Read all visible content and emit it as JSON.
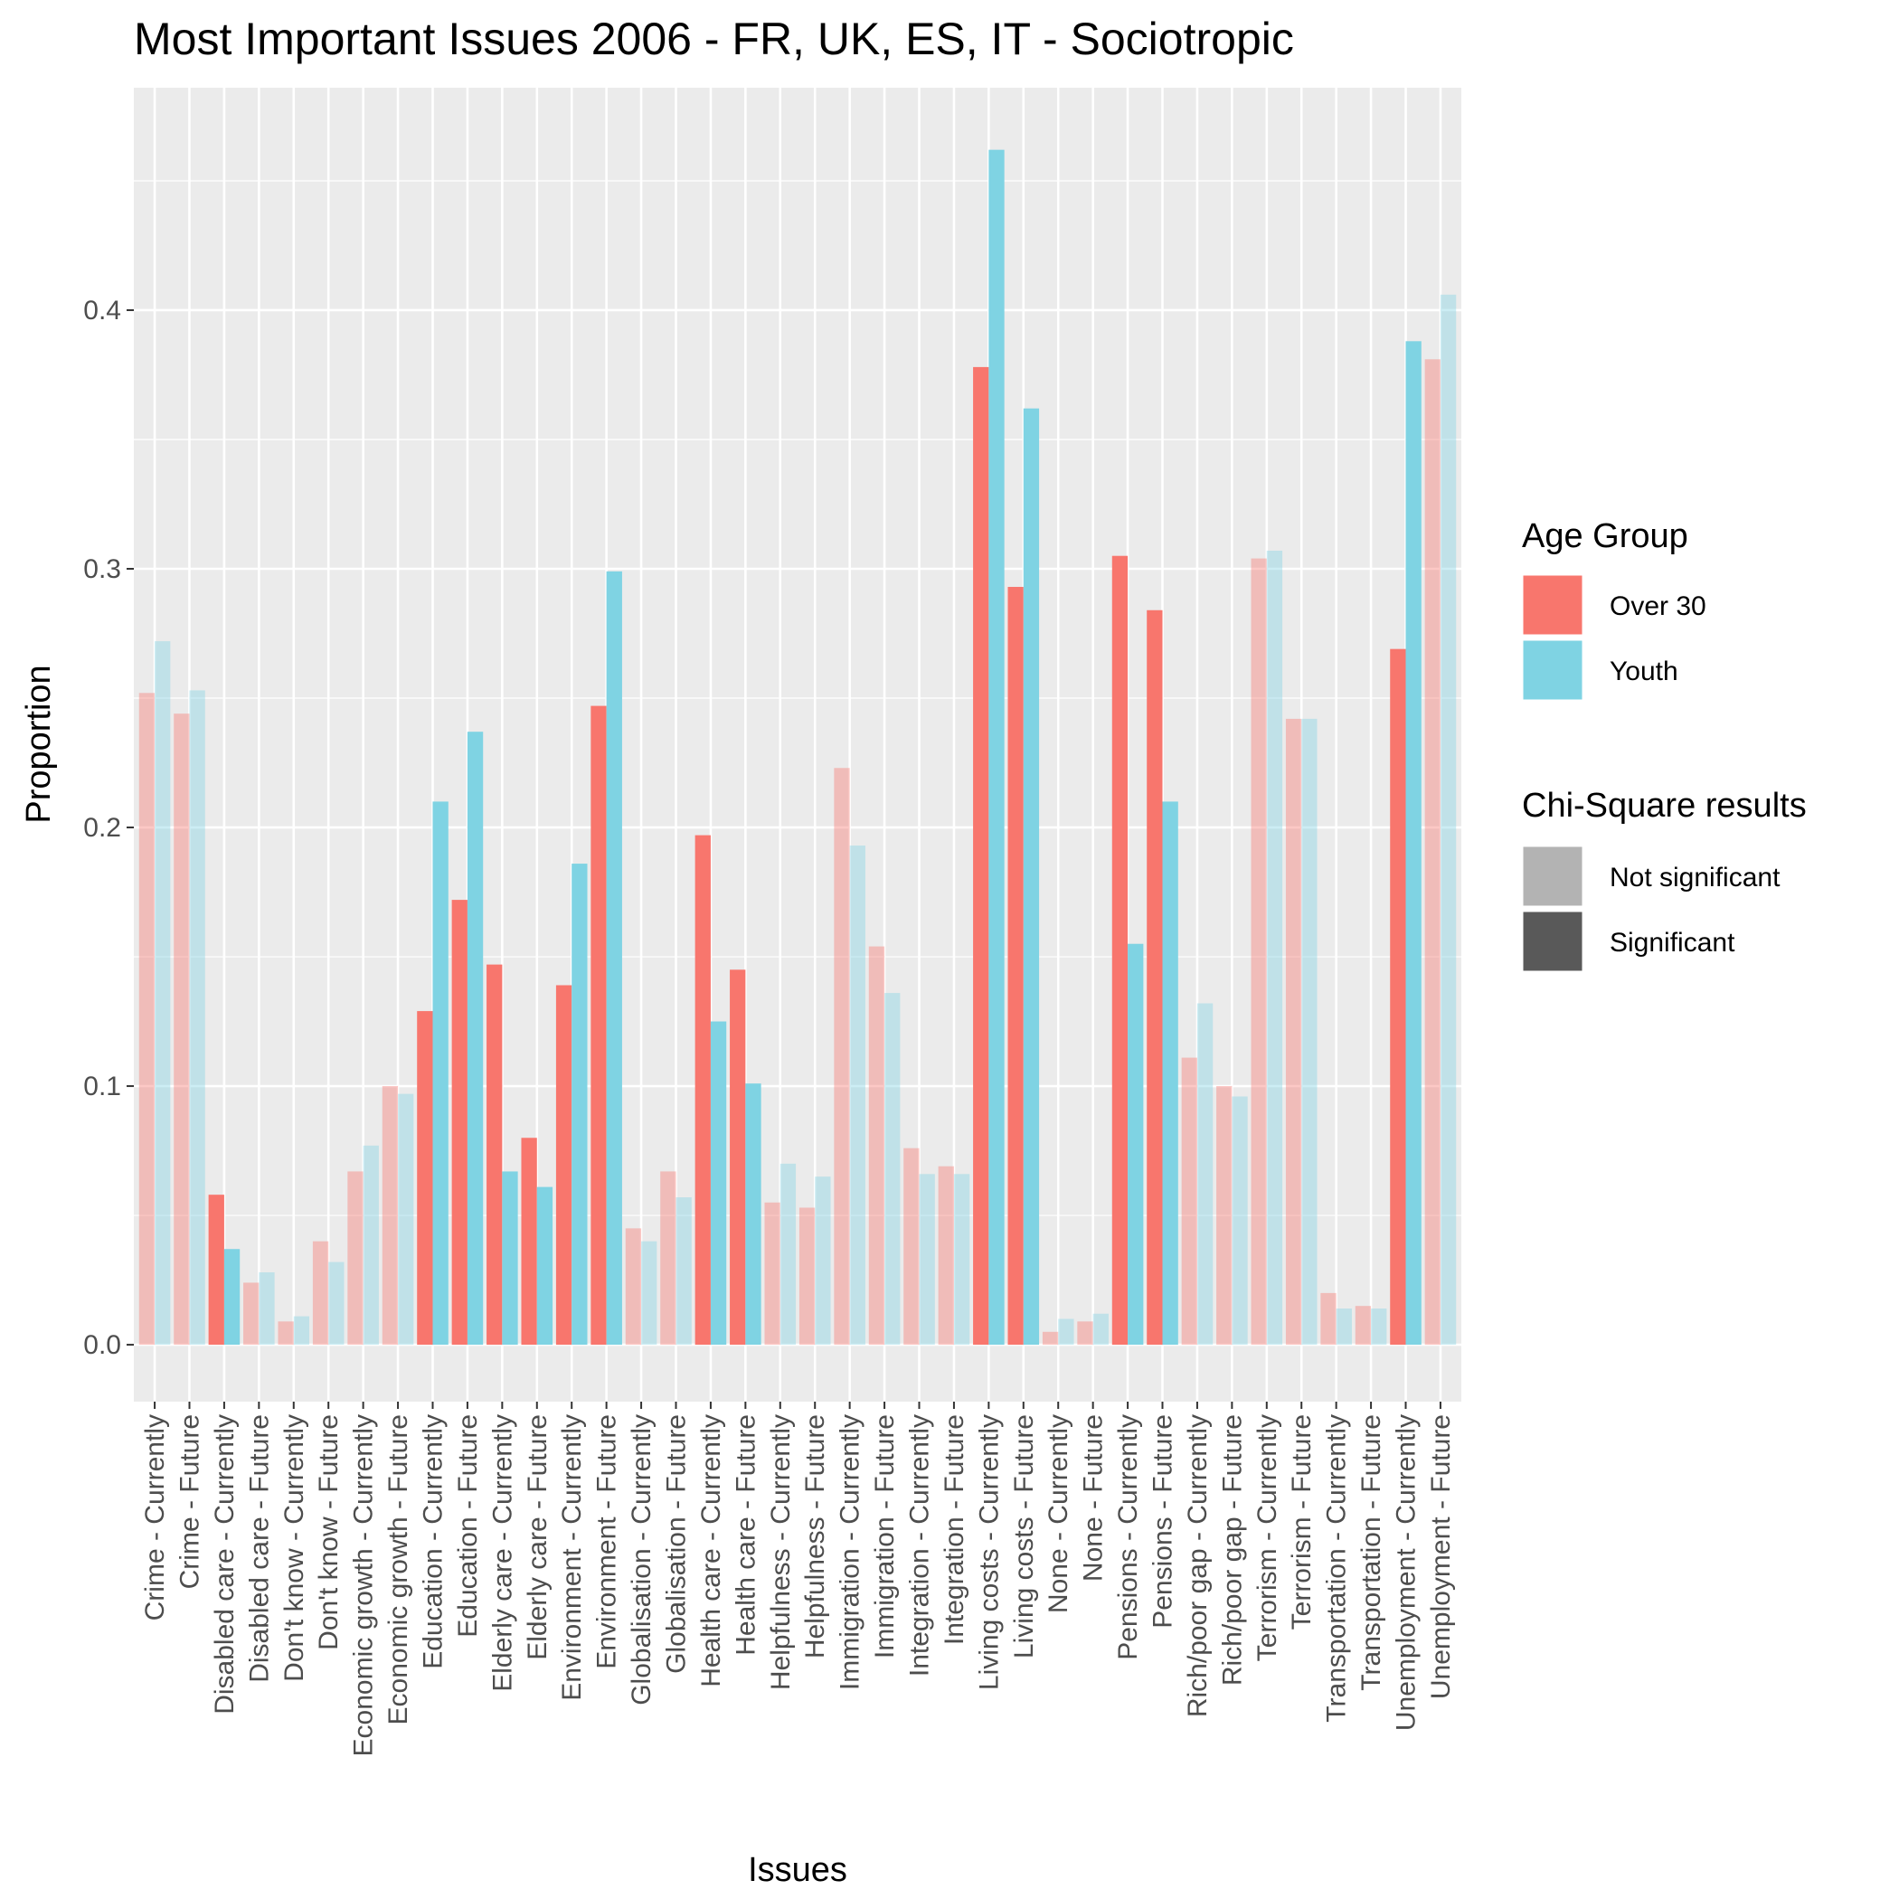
{
  "chart_data": {
    "type": "bar",
    "title": "Most Important Issues 2006 - FR, UK, ES, IT - Sociotropic",
    "xlabel": "Issues",
    "ylabel": "Proportion",
    "ylim": [
      -0.022,
      0.486
    ],
    "y_ticks": [
      "0.0",
      "0.1",
      "0.2",
      "0.3",
      "0.4"
    ],
    "y_tick_values": [
      0.0,
      0.1,
      0.2,
      0.3,
      0.4
    ],
    "grid": true,
    "legend_position": "right",
    "categories": [
      "Crime - Currently",
      "Crime - Future",
      "Disabled care - Currently",
      "Disabled care - Future",
      "Don't know - Currently",
      "Don't know - Future",
      "Economic growth - Currently",
      "Economic growth - Future",
      "Education - Currently",
      "Education - Future",
      "Elderly care - Currently",
      "Elderly care - Future",
      "Environment - Currently",
      "Environment - Future",
      "Globalisation - Currently",
      "Globalisation - Future",
      "Health care - Currently",
      "Health care - Future",
      "Helpfulness - Currently",
      "Helpfulness - Future",
      "Immigration - Currently",
      "Immigration - Future",
      "Integration - Currently",
      "Integration - Future",
      "Living costs - Currently",
      "Living costs - Future",
      "None - Currently",
      "None - Future",
      "Pensions - Currently",
      "Pensions - Future",
      "Rich/poor gap - Currently",
      "Rich/poor gap - Future",
      "Terrorism - Currently",
      "Terrorism - Future",
      "Transportation - Currently",
      "Transportation - Future",
      "Unemployment - Currently",
      "Unemployment - Future"
    ],
    "series": [
      {
        "name": "Over 30",
        "color": "#F8766D",
        "values": [
          0.252,
          0.244,
          0.058,
          0.024,
          0.009,
          0.04,
          0.067,
          0.1,
          0.129,
          0.172,
          0.147,
          0.08,
          0.139,
          0.247,
          0.045,
          0.067,
          0.197,
          0.145,
          0.055,
          0.053,
          0.223,
          0.154,
          0.076,
          0.069,
          0.378,
          0.293,
          0.005,
          0.009,
          0.305,
          0.284,
          0.111,
          0.1,
          0.304,
          0.242,
          0.02,
          0.015,
          0.269,
          0.381
        ]
      },
      {
        "name": "Youth",
        "color": "#7FD3E3",
        "values": [
          0.272,
          0.253,
          0.037,
          0.028,
          0.011,
          0.032,
          0.077,
          0.097,
          0.21,
          0.237,
          0.067,
          0.061,
          0.186,
          0.299,
          0.04,
          0.057,
          0.125,
          0.101,
          0.07,
          0.065,
          0.193,
          0.136,
          0.066,
          0.066,
          0.462,
          0.362,
          0.01,
          0.012,
          0.155,
          0.21,
          0.132,
          0.096,
          0.307,
          0.242,
          0.014,
          0.014,
          0.388,
          0.406
        ]
      }
    ],
    "significant": [
      false,
      false,
      true,
      false,
      false,
      false,
      false,
      false,
      true,
      true,
      true,
      true,
      true,
      true,
      false,
      false,
      true,
      true,
      false,
      false,
      false,
      false,
      false,
      false,
      true,
      true,
      false,
      false,
      true,
      true,
      false,
      false,
      false,
      false,
      false,
      false,
      true,
      false
    ]
  },
  "legend": {
    "age_title": "Age Group",
    "age_items": [
      {
        "label": "Over 30",
        "color": "#F8766D"
      },
      {
        "label": "Youth",
        "color": "#7FD3E3"
      }
    ],
    "chi_title": "Chi-Square results",
    "chi_items": [
      {
        "label": "Not significant",
        "color": "#B3B3B3"
      },
      {
        "label": "Significant",
        "color": "#595959"
      }
    ]
  }
}
